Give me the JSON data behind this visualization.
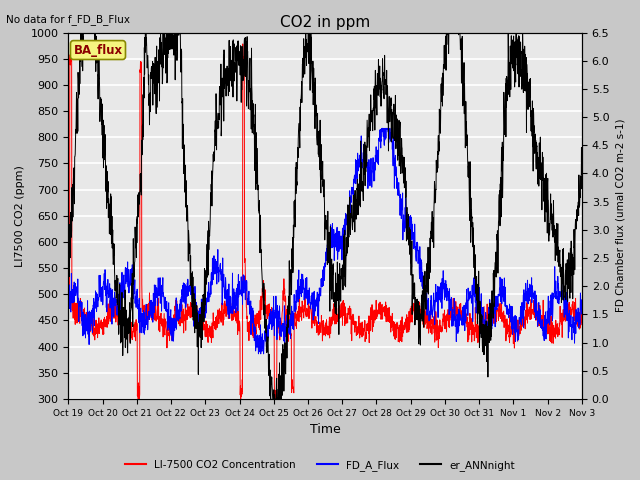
{
  "title": "CO2 in ppm",
  "top_left_text": "No data for f_FD_B_Flux",
  "annotation_text": "BA_flux",
  "xlabel": "Time",
  "ylabel_left": "LI7500 CO2 (ppm)",
  "ylabel_right": "FD Chamber flux (umal CO2 m-2 s-1)",
  "ylim_left": [
    300,
    1000
  ],
  "ylim_right": [
    0.0,
    6.5
  ],
  "xtick_labels": [
    "Oct 19",
    "Oct 20",
    "Oct 21",
    "Oct 22",
    "Oct 23",
    "Oct 24",
    "Oct 25",
    "Oct 26",
    "Oct 27",
    "Oct 28",
    "Oct 29",
    "Oct 30",
    "Oct 31",
    "Nov 1",
    "Nov 2",
    "Nov 3"
  ],
  "legend_labels": [
    "LI-7500 CO2 Concentration",
    "FD_A_Flux",
    "er_ANNnight"
  ],
  "n_points": 2000,
  "fig_bg": "#c8c8c8",
  "plot_bg": "#e8e8e8"
}
